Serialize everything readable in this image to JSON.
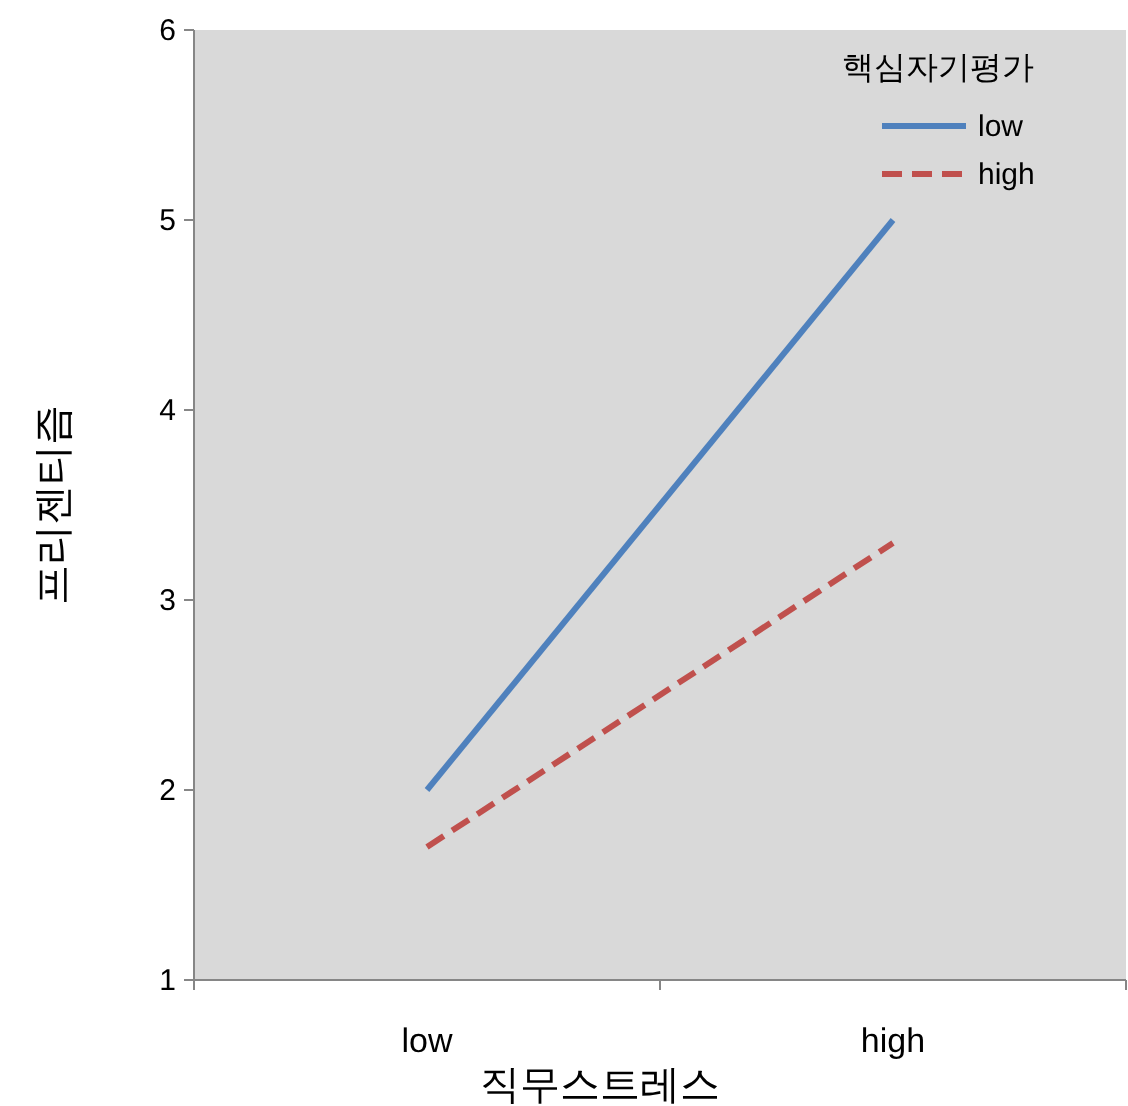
{
  "chart_data": {
    "type": "line",
    "xlabel": "직무스트레스",
    "ylabel": "프리젠티즘",
    "legend_title": "핵심자기평가",
    "categories": [
      "low",
      "high"
    ],
    "series": [
      {
        "name": "low",
        "color": "#4f81bd",
        "values": [
          2,
          5
        ],
        "line_style": "solid"
      },
      {
        "name": "high",
        "color": "#c0504d",
        "values": [
          1.7,
          3.3
        ],
        "line_style": "dashed"
      }
    ],
    "ylim": [
      1,
      6
    ],
    "yticks": [
      1,
      2,
      3,
      4,
      5,
      6
    ],
    "grid": false,
    "legend": "top right",
    "marker": "none"
  }
}
